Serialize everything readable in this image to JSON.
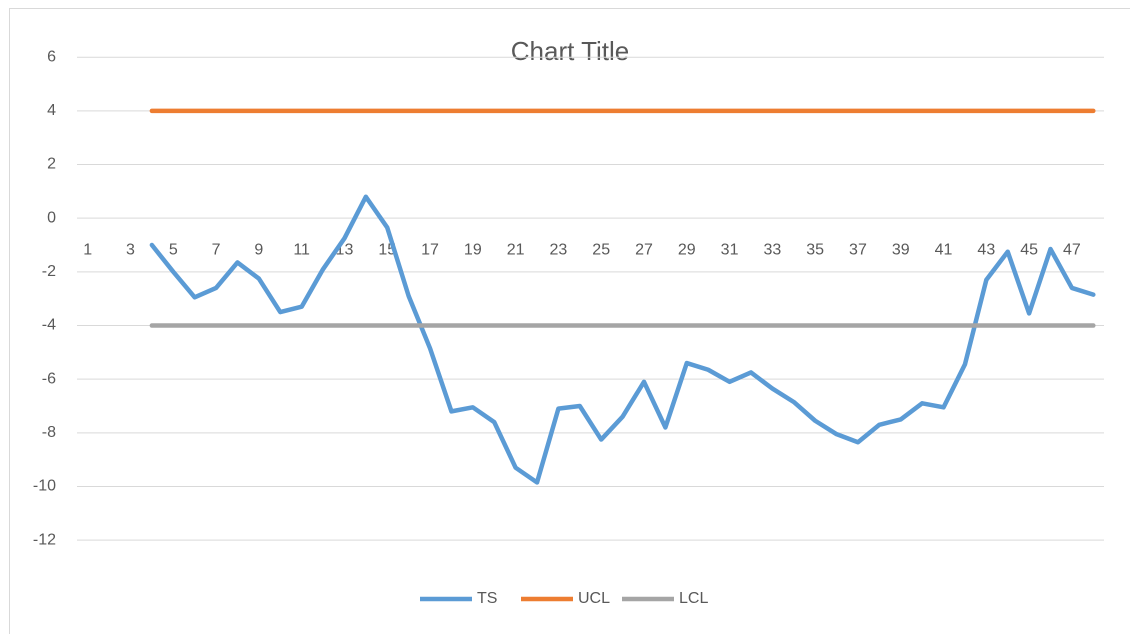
{
  "chart_data": {
    "type": "line",
    "title": "Chart Title",
    "categories": [
      "1",
      null,
      "3",
      null,
      "5",
      null,
      "7",
      null,
      "9",
      null,
      "11",
      null,
      "13",
      null,
      "15",
      null,
      "17",
      null,
      "19",
      null,
      "21",
      null,
      "23",
      null,
      "25",
      null,
      "27",
      null,
      "29",
      null,
      "31",
      null,
      "33",
      null,
      "35",
      null,
      "37",
      null,
      "39",
      null,
      "41",
      null,
      "43",
      null,
      "45",
      null,
      "47",
      null
    ],
    "series": [
      {
        "name": "TS",
        "color": "#5b9bd5",
        "values": [
          null,
          null,
          null,
          -1.0,
          -2.0,
          -2.95,
          -2.6,
          -1.65,
          -2.25,
          -3.5,
          -3.3,
          -1.9,
          -0.75,
          0.8,
          -0.35,
          -2.9,
          -4.85,
          -7.2,
          -7.05,
          -7.6,
          -9.3,
          -9.85,
          -7.1,
          -7.0,
          -8.25,
          -7.4,
          -6.1,
          -7.8,
          -5.4,
          -5.65,
          -6.1,
          -5.75,
          -6.35,
          -6.85,
          -7.55,
          -8.05,
          -8.35,
          -7.7,
          -7.5,
          -6.9,
          -7.05,
          -5.45,
          -2.3,
          -1.25,
          -3.55,
          -1.15,
          -2.6,
          -2.85
        ]
      },
      {
        "name": "UCL",
        "color": "#ed7d31",
        "values": [
          null,
          null,
          null,
          4,
          4,
          4,
          4,
          4,
          4,
          4,
          4,
          4,
          4,
          4,
          4,
          4,
          4,
          4,
          4,
          4,
          4,
          4,
          4,
          4,
          4,
          4,
          4,
          4,
          4,
          4,
          4,
          4,
          4,
          4,
          4,
          4,
          4,
          4,
          4,
          4,
          4,
          4,
          4,
          4,
          4,
          4,
          4,
          4
        ]
      },
      {
        "name": "LCL",
        "color": "#a5a5a5",
        "values": [
          null,
          null,
          null,
          -4,
          -4,
          -4,
          -4,
          -4,
          -4,
          -4,
          -4,
          -4,
          -4,
          -4,
          -4,
          -4,
          -4,
          -4,
          -4,
          -4,
          -4,
          -4,
          -4,
          -4,
          -4,
          -4,
          -4,
          -4,
          -4,
          -4,
          -4,
          -4,
          -4,
          -4,
          -4,
          -4,
          -4,
          -4,
          -4,
          -4,
          -4,
          -4,
          -4,
          -4,
          -4,
          -4,
          -4,
          -4
        ]
      }
    ],
    "ylim": [
      -14,
      6
    ],
    "yticks": [
      -12,
      -10,
      -8,
      -6,
      -4,
      -2,
      0,
      2,
      4,
      6
    ],
    "grid": true,
    "legend": "bottom"
  }
}
